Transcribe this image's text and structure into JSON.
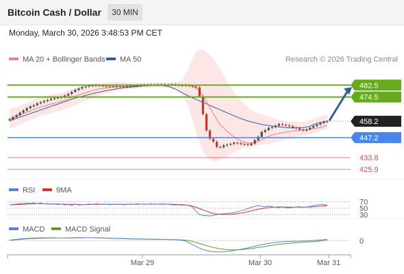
{
  "header": {
    "title": "Bitcoin Cash / Dollar",
    "timeframe": "30 MIN",
    "datetime": "Monday, March 30, 2026 3:48:53 PM CET"
  },
  "legend": {
    "ma20": "MA 20 + Bollinger Bands",
    "ma50": "MA 50",
    "source": "Research © 2026 Trading Central",
    "rsi": "RSI",
    "rsi_ma": "9MA",
    "macd": "MACD",
    "macd_signal": "MACD Signal"
  },
  "colors": {
    "ma20": "#f08080",
    "ma50": "#2f5f9e",
    "bollinger_fill": "#fde3e3",
    "resistance": "#66aa1e",
    "support": "#4a86e8",
    "minor_support": "#e8484c",
    "price_tag": "#222222",
    "candle_up": "#4a4a4a",
    "candle_down": "#c0392b",
    "rsi": "#5b7fd6",
    "rsi_ma": "#d93030",
    "macd": "#5b7fd6",
    "macd_signal": "#55a02a",
    "arrow": "#2f6099"
  },
  "chart_data": [
    {
      "type": "candlestick",
      "x_ticks": [
        "Mar 29",
        "Mar 30",
        "Mar 31"
      ],
      "ylim": [
        420,
        490
      ],
      "levels": [
        {
          "name": "resistance_2",
          "value": 482.5,
          "label": "482.5",
          "style": "resistance"
        },
        {
          "name": "resistance_1",
          "value": 474.5,
          "label": "474.5",
          "style": "resistance"
        },
        {
          "name": "current_price",
          "value": 458.2,
          "label": "458.2",
          "style": "price"
        },
        {
          "name": "support_1",
          "value": 447.2,
          "label": "447.2",
          "style": "support"
        },
        {
          "name": "support_2",
          "value": 433.8,
          "label": "433.8",
          "style": "minor"
        },
        {
          "name": "support_3",
          "value": 425.9,
          "label": "425.9",
          "style": "minor"
        }
      ],
      "close": [
        459.5,
        461,
        462.3,
        464,
        465.5,
        467,
        468.2,
        469,
        470.3,
        471,
        471.8,
        472.5,
        473.3,
        473.8,
        474.2,
        474.5,
        475.5,
        476.6,
        478,
        479.3,
        480.3,
        481.2,
        481.6,
        482.2,
        482.3,
        482.5,
        482.2,
        482,
        481.8,
        481.7,
        481.6,
        481.8,
        481.5,
        481.3,
        481.6,
        481.9,
        482,
        482.2,
        482.4,
        482.6,
        482.6,
        482.8,
        482.7,
        482.9,
        483,
        482.8,
        482.9,
        483,
        482.7,
        482.4,
        482.3,
        482.5,
        482,
        481.7,
        481,
        475,
        463,
        452,
        446.5,
        444.5,
        441,
        440.8,
        442,
        442.5,
        443,
        443.8,
        443.5,
        442.8,
        442.8,
        442.2,
        443.2,
        445.5,
        447.8,
        451,
        452.3,
        453.8,
        454.3,
        455.2,
        456.3,
        455.8,
        455.5,
        454.9,
        454,
        453.5,
        452.5,
        452,
        452.7,
        453.9,
        455,
        456,
        457,
        458,
        458.2
      ],
      "ma20": [
        459.5,
        460.6,
        461.5,
        462.5,
        463.4,
        464.3,
        465.2,
        466.1,
        466.9,
        467.7,
        468.4,
        469.1,
        469.8,
        470.4,
        471,
        471.6,
        472.4,
        473.2,
        474.1,
        475,
        475.9,
        476.7,
        477.4,
        478.1,
        478.8,
        479.4,
        479.9,
        480.3,
        480.6,
        480.9,
        481.1,
        481.3,
        481.5,
        481.6,
        481.7,
        481.8,
        481.9,
        482,
        482,
        482.1,
        482.2,
        482.3,
        482.3,
        482.4,
        482.5,
        482.6,
        482.7,
        482.7,
        482.6,
        482.5,
        482.5,
        482.4,
        482.1,
        481.6,
        480.6,
        478.5,
        475.3,
        471.4,
        467.3,
        463.3,
        459.3,
        455.7,
        453.7,
        451.4,
        449.5,
        447.7,
        446.2,
        445,
        444.1,
        443.5,
        443.6,
        444,
        444.7,
        445.8,
        447,
        448.1,
        449,
        449.6,
        450.1,
        450.5,
        450.8,
        451.2,
        451.6,
        452,
        452.3,
        452.4,
        452.6,
        452.9,
        453.2,
        453.6,
        454.1,
        454.8,
        455.3
      ],
      "ma50": [
        458.6,
        459.4,
        460.2,
        461,
        461.8,
        462.6,
        463.4,
        464.2,
        465,
        465.8,
        466.6,
        467.4,
        468.2,
        469,
        469.8,
        470.6,
        471.4,
        472.2,
        473,
        473.8,
        474.4,
        475,
        475.6,
        476.2,
        476.8,
        477.3,
        477.8,
        478.3,
        478.8,
        479.2,
        479.6,
        480,
        480.4,
        480.8,
        481,
        481.2,
        481.4,
        481.6,
        481.8,
        482,
        482.1,
        482.2,
        482.3,
        482.3,
        482.2,
        482,
        481.6,
        480.8,
        479.8,
        478.6,
        477.4,
        476.2,
        475,
        473.9,
        472.9,
        471.9,
        470.9,
        469.9,
        468.9,
        467.9,
        466.9,
        465.9,
        464.9,
        463.9,
        462.9,
        461.9,
        460.9,
        460,
        459.2,
        458.4,
        457.8,
        457.2,
        456.6,
        456.1,
        455.7,
        455.3,
        455,
        454.7,
        454.4,
        454.2,
        454,
        453.8,
        453.8,
        453.8,
        453.9,
        454,
        454.3,
        454.9,
        455.9,
        456.8,
        457.4,
        457.9,
        458.2
      ],
      "bollinger_upper": [
        466,
        467,
        467.8,
        468.8,
        469.8,
        470.8,
        471.8,
        472.8,
        473.6,
        474.4,
        475,
        475.6,
        476.1,
        476.6,
        477,
        477.4,
        478,
        478.8,
        479.6,
        480.4,
        481.2,
        481.8,
        482.4,
        482.8,
        483.2,
        483.5,
        483.8,
        484,
        484.2,
        484.3,
        484.4,
        484.5,
        484.5,
        484.5,
        484.4,
        484.3,
        484.2,
        484.1,
        484,
        484,
        484,
        484,
        484,
        484,
        484,
        484,
        484,
        484,
        484.2,
        484.6,
        486,
        490,
        495,
        501,
        505,
        506.7,
        506.2,
        505,
        502.6,
        500,
        497,
        493.4,
        489.2,
        485,
        481.4,
        478,
        475,
        472,
        469.6,
        467.4,
        465.8,
        464.6,
        463.6,
        462.8,
        462,
        461.2,
        460.4,
        459.8,
        459.2,
        458.8,
        458.4,
        458.2,
        458,
        457.9,
        457.9,
        458,
        458.4,
        459,
        459.8,
        460.6,
        461.4,
        462.2,
        462.8
      ],
      "bollinger_lower": [
        453,
        454,
        455,
        456,
        457,
        458,
        459,
        460,
        461,
        461.8,
        462.4,
        463,
        463.6,
        464.2,
        464.8,
        465.4,
        466.2,
        467.2,
        468.2,
        469.2,
        470.2,
        471.2,
        472.2,
        473,
        473.8,
        474.6,
        475.4,
        476.2,
        476.9,
        477.5,
        478,
        478.5,
        478.9,
        479.2,
        479.5,
        479.8,
        480,
        480.2,
        480.4,
        480.6,
        480.8,
        480.9,
        481,
        481,
        480.9,
        480.7,
        480.5,
        480.2,
        479.6,
        478.3,
        475.8,
        471.6,
        466.4,
        458.4,
        451,
        444,
        438.5,
        434.6,
        432.5,
        431.5,
        431.5,
        432.2,
        433.3,
        434.6,
        436,
        437.4,
        438.6,
        439.5,
        440.2,
        440.8,
        441.3,
        441.7,
        442,
        442.3,
        442.6,
        443,
        443.5,
        444,
        444.6,
        445.2,
        445.8,
        446.4,
        447,
        447.6,
        448.2,
        448.6,
        449,
        449.6,
        450.3,
        451,
        451.8,
        452.6,
        453.2
      ],
      "projection": {
        "from": 458.2,
        "to": 482.5
      }
    },
    {
      "type": "line",
      "name_rsi": "RSI",
      "name_ma": "9MA",
      "ylim": [
        20,
        80
      ],
      "levels": [
        70,
        50,
        30
      ],
      "tick_labels": [
        "70",
        "50",
        "30"
      ],
      "rsi": [
        60,
        62,
        63,
        65,
        64,
        66,
        65,
        67,
        64,
        66,
        63,
        65,
        62,
        64,
        61,
        63,
        60,
        62,
        59,
        63,
        60,
        61,
        62,
        63,
        62,
        64,
        63,
        62,
        63,
        61,
        62,
        63,
        62,
        61,
        63,
        62,
        63,
        64,
        63,
        62,
        63,
        64,
        62,
        63,
        64,
        63,
        62,
        61,
        60,
        61,
        59,
        60,
        58,
        53,
        40,
        30,
        28,
        27,
        26,
        28,
        30,
        32,
        33,
        34,
        35,
        37,
        39,
        42,
        45,
        49,
        53,
        56,
        58,
        56,
        55,
        57,
        55,
        53,
        52,
        54,
        52,
        51,
        53,
        54,
        55,
        53,
        54,
        56,
        58,
        60,
        62,
        61,
        60
      ],
      "rsi_ma": [
        60,
        61,
        61.5,
        62,
        62.5,
        63,
        63.5,
        64,
        64,
        64,
        63.8,
        63.6,
        63.4,
        63.2,
        63,
        62.8,
        62.6,
        62.4,
        62.2,
        62,
        61.8,
        61.6,
        61.6,
        61.8,
        62,
        62.2,
        62.3,
        62.4,
        62.5,
        62.5,
        62.5,
        62.5,
        62.5,
        62.5,
        62.5,
        62.5,
        62.6,
        62.7,
        62.8,
        62.8,
        62.8,
        62.8,
        62.8,
        62.8,
        62.8,
        62.7,
        62.6,
        62.4,
        62,
        61.5,
        61,
        60.5,
        59,
        56.5,
        53,
        49,
        45,
        41,
        37,
        34,
        32,
        31,
        30.5,
        30.5,
        31,
        32,
        33.5,
        35,
        37,
        39.5,
        42,
        44.5,
        47,
        49,
        50.5,
        52,
        53,
        53.5,
        54,
        54,
        53.8,
        53.6,
        53.5,
        53.5,
        53.5,
        53.5,
        53.7,
        54,
        54.5,
        55.5,
        56.5,
        57.5,
        58.5
      ]
    },
    {
      "type": "line",
      "name_macd": "MACD",
      "name_signal": "MACD Signal",
      "ylim": [
        -12,
        4
      ],
      "tick_labels": [
        "0"
      ],
      "macd": [
        0.5,
        0.8,
        1.2,
        1.5,
        1.8,
        2,
        2.2,
        2.4,
        2.5,
        2.6,
        2.6,
        2.6,
        2.5,
        2.5,
        2.4,
        2.4,
        2.4,
        2.5,
        2.6,
        2.7,
        2.8,
        2.8,
        2.8,
        2.8,
        2.7,
        2.6,
        2.5,
        2.4,
        2.3,
        2.2,
        2.1,
        2,
        1.9,
        1.8,
        1.7,
        1.6,
        1.5,
        1.5,
        1.4,
        1.4,
        1.3,
        1.3,
        1.2,
        1.2,
        1.1,
        1.1,
        1,
        0.9,
        0.8,
        0.6,
        0.3,
        -0.5,
        -2,
        -3.8,
        -5.5,
        -7,
        -8.2,
        -9.2,
        -10,
        -10.4,
        -10.6,
        -10.6,
        -10.4,
        -10.1,
        -9.7,
        -9.2,
        -8.7,
        -8.1,
        -7.5,
        -6.8,
        -6,
        -5.2,
        -4.5,
        -3.8,
        -3.2,
        -2.6,
        -2.1,
        -1.7,
        -1.4,
        -1.1,
        -0.9,
        -0.8,
        -0.7,
        -0.6,
        -0.5,
        -0.4,
        -0.3,
        -0.1,
        0.1,
        0.4,
        0.7,
        1,
        1.2
      ],
      "signal": [
        0.3,
        0.5,
        0.8,
        1.1,
        1.4,
        1.6,
        1.8,
        2,
        2.1,
        2.2,
        2.3,
        2.4,
        2.4,
        2.4,
        2.4,
        2.4,
        2.4,
        2.4,
        2.4,
        2.5,
        2.6,
        2.6,
        2.7,
        2.7,
        2.7,
        2.6,
        2.6,
        2.5,
        2.4,
        2.3,
        2.2,
        2.1,
        2,
        1.9,
        1.8,
        1.7,
        1.6,
        1.6,
        1.5,
        1.5,
        1.4,
        1.4,
        1.3,
        1.3,
        1.2,
        1.2,
        1.1,
        1,
        0.9,
        0.8,
        0.7,
        0.4,
        -0.1,
        -0.8,
        -1.7,
        -2.7,
        -3.7,
        -4.7,
        -5.6,
        -6.4,
        -7.1,
        -7.7,
        -8.1,
        -8.4,
        -8.6,
        -8.7,
        -8.6,
        -8.4,
        -8.1,
        -7.8,
        -7.4,
        -6.9,
        -6.4,
        -5.9,
        -5.4,
        -4.9,
        -4.4,
        -3.9,
        -3.5,
        -3.1,
        -2.8,
        -2.5,
        -2.2,
        -1.9,
        -1.7,
        -1.5,
        -1.3,
        -1.1,
        -0.9,
        -0.6,
        -0.3,
        0,
        0.3
      ]
    }
  ]
}
